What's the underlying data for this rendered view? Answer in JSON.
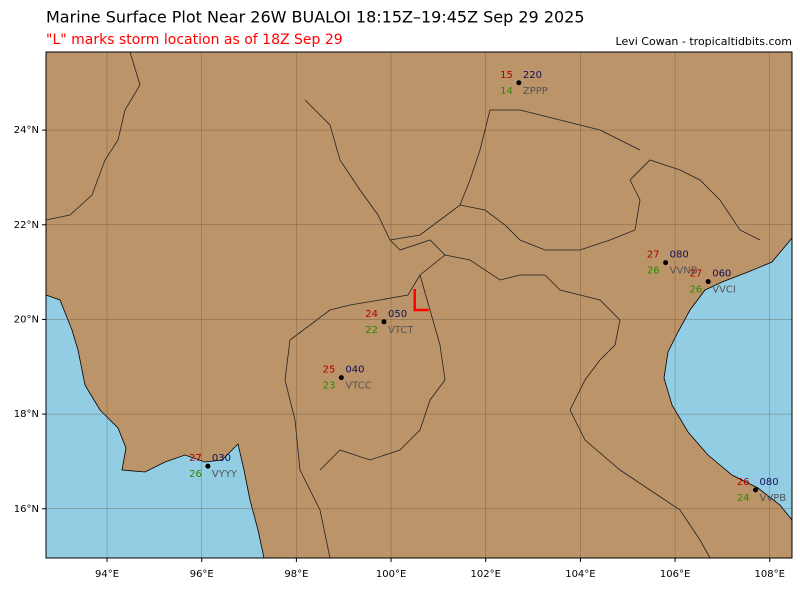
{
  "title": "Marine Surface Plot Near 26W BUALOI 18:15Z–19:45Z Sep 29 2025",
  "subtitle": "\"L\" marks storm location as of 18Z Sep 29",
  "credit": "Levi Cowan - tropicaltidbits.com",
  "map": {
    "xlim": [
      92.71,
      108.47
    ],
    "ylim": [
      14.96,
      25.65
    ],
    "xticks": [
      {
        "value": 94,
        "label": "94°E"
      },
      {
        "value": 96,
        "label": "96°E"
      },
      {
        "value": 98,
        "label": "98°E"
      },
      {
        "value": 100,
        "label": "100°E"
      },
      {
        "value": 102,
        "label": "102°E"
      },
      {
        "value": 104,
        "label": "104°E"
      },
      {
        "value": 106,
        "label": "106°E"
      },
      {
        "value": 108,
        "label": "108°E"
      }
    ],
    "yticks": [
      {
        "value": 16,
        "label": "16°N"
      },
      {
        "value": 18,
        "label": "18°N"
      },
      {
        "value": 20,
        "label": "20°N"
      },
      {
        "value": 22,
        "label": "22°N"
      },
      {
        "value": 24,
        "label": "24°N"
      }
    ],
    "grid": true,
    "land_color": "#bc9469",
    "water_color": "#93cde3",
    "stations": [
      {
        "id": "ZPPP",
        "temperature": 15,
        "dewpoint": 14,
        "pressure": "220",
        "lon": 102.7,
        "lat": 25.0
      },
      {
        "id": "VVNB",
        "temperature": 27,
        "dewpoint": 26,
        "pressure": "080",
        "lon": 105.8,
        "lat": 21.2
      },
      {
        "id": "VVCI",
        "temperature": 27,
        "dewpoint": 26,
        "pressure": "060",
        "lon": 106.7,
        "lat": 20.8
      },
      {
        "id": "VTCT",
        "temperature": 24,
        "dewpoint": 22,
        "pressure": "050",
        "lon": 99.85,
        "lat": 19.95
      },
      {
        "id": "VTCC",
        "temperature": 25,
        "dewpoint": 23,
        "pressure": "040",
        "lon": 98.95,
        "lat": 18.77
      },
      {
        "id": "VYYY",
        "temperature": 27,
        "dewpoint": 26,
        "pressure": "030",
        "lon": 96.13,
        "lat": 16.9
      },
      {
        "id": "VVPB",
        "temperature": 26,
        "dewpoint": 24,
        "pressure": "080",
        "lon": 107.7,
        "lat": 16.4
      }
    ],
    "storm": {
      "lon": 100.5,
      "lat": 20.2,
      "color": "#ff0000"
    }
  }
}
